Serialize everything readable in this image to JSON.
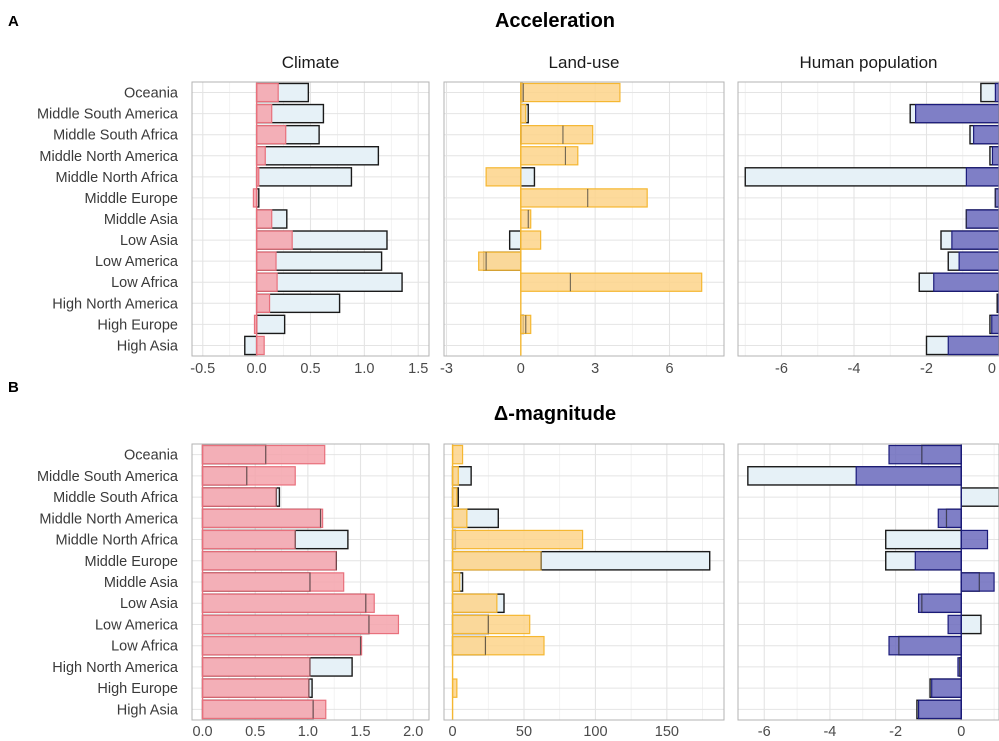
{
  "panels": {
    "A": {
      "letter": "A",
      "title": "Acceleration"
    },
    "B": {
      "letter": "B",
      "title": "Δ-magnitude"
    }
  },
  "colors": {
    "climate_fill": "#f4a3ab",
    "climate_stroke": "#e8707c",
    "landuse_fill": "#fdd48a",
    "landuse_stroke": "#f5b731",
    "human_fill": "#6c6bbd",
    "human_stroke": "#1b1b7a",
    "outline_fill": "#e6f1f7",
    "outline_stroke": "#1a1a1a",
    "grid": "#e4e4e4",
    "panel_border": "#b3b3b3"
  },
  "chart_data": [
    {
      "panel": "A",
      "type": "bar",
      "orientation": "horizontal",
      "title": "Climate",
      "categories": [
        "Oceania",
        "Middle South America",
        "Middle South Africa",
        "Middle North America",
        "Middle North Africa",
        "Middle Europe",
        "Middle Asia",
        "Low Asia",
        "Low America",
        "Low Africa",
        "High North America",
        "High Europe",
        "High Asia"
      ],
      "xlim": [
        -0.6,
        1.6
      ],
      "ticks": [
        -0.5,
        0,
        0.5,
        1,
        1.5
      ],
      "tick_labels": [
        "-0.5",
        "0.0",
        "0.5",
        "1.0",
        "1.5"
      ],
      "series": [
        {
          "kind": "outline",
          "values": [
            0.48,
            0.62,
            0.58,
            1.13,
            0.88,
            0.02,
            0.28,
            1.21,
            1.16,
            1.35,
            0.77,
            0.26,
            -0.11
          ]
        },
        {
          "kind": "filled",
          "values": [
            0.2,
            0.14,
            0.27,
            0.08,
            0.02,
            -0.03,
            0.14,
            0.33,
            0.18,
            0.19,
            0.12,
            -0.02,
            0.07
          ]
        }
      ]
    },
    {
      "panel": "A",
      "type": "bar",
      "orientation": "horizontal",
      "title": "Land-use",
      "categories": [
        "Oceania",
        "Middle South America",
        "Middle South Africa",
        "Middle North America",
        "Middle North Africa",
        "Middle Europe",
        "Middle Asia",
        "Low Asia",
        "Low America",
        "Low Africa",
        "High North America",
        "High Europe",
        "High Asia"
      ],
      "xlim": [
        -3.1,
        8.2
      ],
      "ticks": [
        -3,
        0,
        3,
        6
      ],
      "tick_labels": [
        "-3",
        "0",
        "3",
        "6"
      ],
      "series": [
        {
          "kind": "outline",
          "values": [
            0.05,
            0.3,
            0.02,
            0.0,
            0.55,
            0.0,
            0.0,
            -0.45,
            -1.5,
            0.0,
            0.0,
            0.1,
            0.0
          ]
        },
        {
          "kind": "filled",
          "values": [
            4.0,
            0.2,
            2.9,
            2.3,
            -1.4,
            5.1,
            0.4,
            0.8,
            -1.7,
            7.3,
            0.0,
            0.4,
            0.0
          ],
          "mid_marks": [
            0.1,
            0.3,
            1.7,
            1.8,
            0.0,
            2.7,
            0.3,
            0.0,
            -1.4,
            2.0,
            0.0,
            0.2,
            0.0
          ]
        }
      ]
    },
    {
      "panel": "A",
      "type": "bar",
      "orientation": "horizontal",
      "title": "Human population",
      "categories": [
        "Oceania",
        "Middle South America",
        "Middle South Africa",
        "Middle North America",
        "Middle North Africa",
        "Middle Europe",
        "Middle Asia",
        "Low Asia",
        "Low America",
        "Low Africa",
        "High North America",
        "High Europe",
        "High Asia"
      ],
      "xlim": [
        -7.2,
        0.0
      ],
      "ticks": [
        -6,
        -4,
        -2,
        0
      ],
      "tick_labels": [
        "-6",
        "-4",
        "-2",
        "0"
      ],
      "series": [
        {
          "kind": "outline",
          "values": [
            -0.5,
            -2.45,
            -0.8,
            -0.25,
            -7.0,
            -0.1,
            -0.9,
            -1.6,
            -1.4,
            -2.2,
            -0.05,
            -0.25,
            -2.0
          ]
        },
        {
          "kind": "filled",
          "values": [
            -0.1,
            -2.3,
            -0.7,
            -0.18,
            -0.9,
            -0.1,
            -0.9,
            -1.3,
            -1.1,
            -1.8,
            -0.02,
            -0.2,
            -1.4
          ]
        }
      ]
    },
    {
      "panel": "B",
      "type": "bar",
      "orientation": "horizontal",
      "title": "",
      "categories": [
        "Oceania",
        "Middle South America",
        "Middle South Africa",
        "Middle North America",
        "Middle North Africa",
        "Middle Europe",
        "Middle Asia",
        "Low Asia",
        "Low America",
        "Low Africa",
        "High North America",
        "High Europe",
        "High Asia"
      ],
      "xlim": [
        -0.1,
        2.15
      ],
      "ticks": [
        0,
        0.5,
        1,
        1.5,
        2
      ],
      "tick_labels": [
        "0.0",
        "0.5",
        "1.0",
        "1.5",
        "2.0"
      ],
      "series": [
        {
          "kind": "outline",
          "values": [
            0.6,
            0.42,
            0.73,
            1.12,
            1.38,
            1.27,
            1.02,
            1.55,
            1.58,
            1.5,
            1.42,
            1.04,
            1.05
          ]
        },
        {
          "kind": "filled",
          "values": [
            1.16,
            0.88,
            0.7,
            1.14,
            0.88,
            1.27,
            1.34,
            1.63,
            1.86,
            1.51,
            1.02,
            1.01,
            1.17
          ],
          "mid_marks": [
            0.6,
            0.42,
            0.7,
            1.12,
            0.88,
            1.27,
            1.02,
            1.55,
            1.58,
            1.5,
            1.02,
            1.01,
            1.05
          ]
        }
      ]
    },
    {
      "panel": "B",
      "type": "bar",
      "orientation": "horizontal",
      "title": "",
      "categories": [
        "Oceania",
        "Middle South America",
        "Middle South Africa",
        "Middle North America",
        "Middle North Africa",
        "Middle Europe",
        "Middle Asia",
        "Low Asia",
        "Low America",
        "Low Africa",
        "High North America",
        "High Europe",
        "High Asia"
      ],
      "xlim": [
        -6,
        190
      ],
      "ticks": [
        0,
        50,
        100,
        150
      ],
      "tick_labels": [
        "0",
        "50",
        "100",
        "150"
      ],
      "series": [
        {
          "kind": "outline",
          "values": [
            0.0,
            13.0,
            4.0,
            32.0,
            2.0,
            180.0,
            7.0,
            36.0,
            25.0,
            23.0,
            0.0,
            0.0,
            0.0
          ]
        },
        {
          "kind": "filled",
          "values": [
            7.0,
            4.0,
            3.0,
            10.0,
            91.0,
            62.0,
            5.0,
            31.0,
            54.0,
            64.0,
            0.0,
            3.0,
            0.0
          ],
          "mid_marks": [
            0.0,
            0.0,
            0.0,
            0.0,
            0.0,
            62.0,
            0.0,
            0.0,
            25.0,
            23.0,
            0.0,
            0.0,
            0.0
          ]
        }
      ]
    },
    {
      "panel": "B",
      "type": "bar",
      "orientation": "horizontal",
      "title": "",
      "categories": [
        "Oceania",
        "Middle South America",
        "Middle South Africa",
        "Middle North America",
        "Middle North Africa",
        "Middle Europe",
        "Middle Asia",
        "Low Asia",
        "Low America",
        "Low Africa",
        "High North America",
        "High Europe",
        "High Asia"
      ],
      "xlim": [
        -6.8,
        1.15
      ],
      "ticks": [
        -6,
        -4,
        -2,
        0
      ],
      "tick_labels": [
        "-6",
        "-4",
        "-2",
        "0"
      ],
      "series": [
        {
          "kind": "outline",
          "values": [
            -1.2,
            -6.5,
            1.15,
            -0.45,
            -2.3,
            -2.3,
            0.55,
            -1.2,
            0.6,
            -1.9,
            -0.05,
            -0.95,
            -1.35
          ]
        },
        {
          "kind": "filled",
          "values": [
            -2.2,
            -3.2,
            0.0,
            -0.7,
            0.8,
            -1.4,
            1.0,
            -1.3,
            -0.4,
            -2.2,
            -0.1,
            -0.9,
            -1.3
          ]
        }
      ]
    }
  ]
}
